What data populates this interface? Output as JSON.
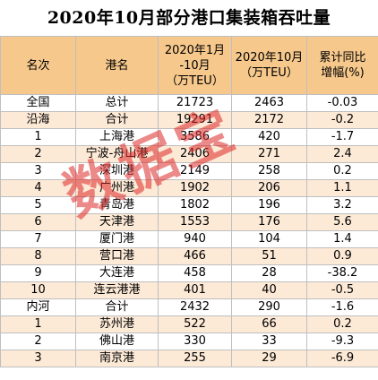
{
  "title": "2020年10月部分港口集装箱吞吐量",
  "headers": {
    "rank": "名次",
    "port": "港名",
    "jan_oct_line1": "2020年1月",
    "jan_oct_line2": "-10月",
    "jan_oct_unit": "（万TEU）",
    "oct": "2020年10月",
    "oct_unit": "（万TEU）",
    "yoy_line1": "累计同比",
    "yoy_line2": "增幅(%)"
  },
  "rows": [
    {
      "rank": "全国",
      "port": "总计",
      "jan_oct": "21723",
      "oct": "2463",
      "yoy": "-0.03"
    },
    {
      "rank": "沿海",
      "port": "合计",
      "jan_oct": "19291",
      "oct": "2172",
      "yoy": "-0.2"
    },
    {
      "rank": "1",
      "port": "上海港",
      "jan_oct": "3586",
      "oct": "420",
      "yoy": "-1.7"
    },
    {
      "rank": "2",
      "port": "宁波-舟山港",
      "jan_oct": "2406",
      "oct": "271",
      "yoy": "2.4"
    },
    {
      "rank": "3",
      "port": "深圳港",
      "jan_oct": "2149",
      "oct": "258",
      "yoy": "0.2"
    },
    {
      "rank": "4",
      "port": "广州港",
      "jan_oct": "1902",
      "oct": "206",
      "yoy": "1.1"
    },
    {
      "rank": "5",
      "port": "青岛港",
      "jan_oct": "1802",
      "oct": "196",
      "yoy": "3.2"
    },
    {
      "rank": "6",
      "port": "天津港",
      "jan_oct": "1553",
      "oct": "176",
      "yoy": "5.6"
    },
    {
      "rank": "7",
      "port": "厦门港",
      "jan_oct": "940",
      "oct": "104",
      "yoy": "1.4"
    },
    {
      "rank": "8",
      "port": "营口港",
      "jan_oct": "466",
      "oct": "51",
      "yoy": "0.9"
    },
    {
      "rank": "9",
      "port": "大连港",
      "jan_oct": "458",
      "oct": "28",
      "yoy": "-38.2"
    },
    {
      "rank": "10",
      "port": "连云港港",
      "jan_oct": "401",
      "oct": "40",
      "yoy": "-0.5"
    },
    {
      "rank": "内河",
      "port": "合计",
      "jan_oct": "2432",
      "oct": "290",
      "yoy": "-1.6"
    },
    {
      "rank": "1",
      "port": "苏州港",
      "jan_oct": "522",
      "oct": "66",
      "yoy": "0.2"
    },
    {
      "rank": "2",
      "port": "佛山港",
      "jan_oct": "330",
      "oct": "33",
      "yoy": "-9.3"
    },
    {
      "rank": "3",
      "port": "南京港",
      "jan_oct": "255",
      "oct": "29",
      "yoy": "-6.9"
    }
  ],
  "watermark": "数据宝",
  "colors": {
    "header_bg": "#f6c88c",
    "stripe_bg": "#fce9d6",
    "watermark": "#dc2828"
  }
}
